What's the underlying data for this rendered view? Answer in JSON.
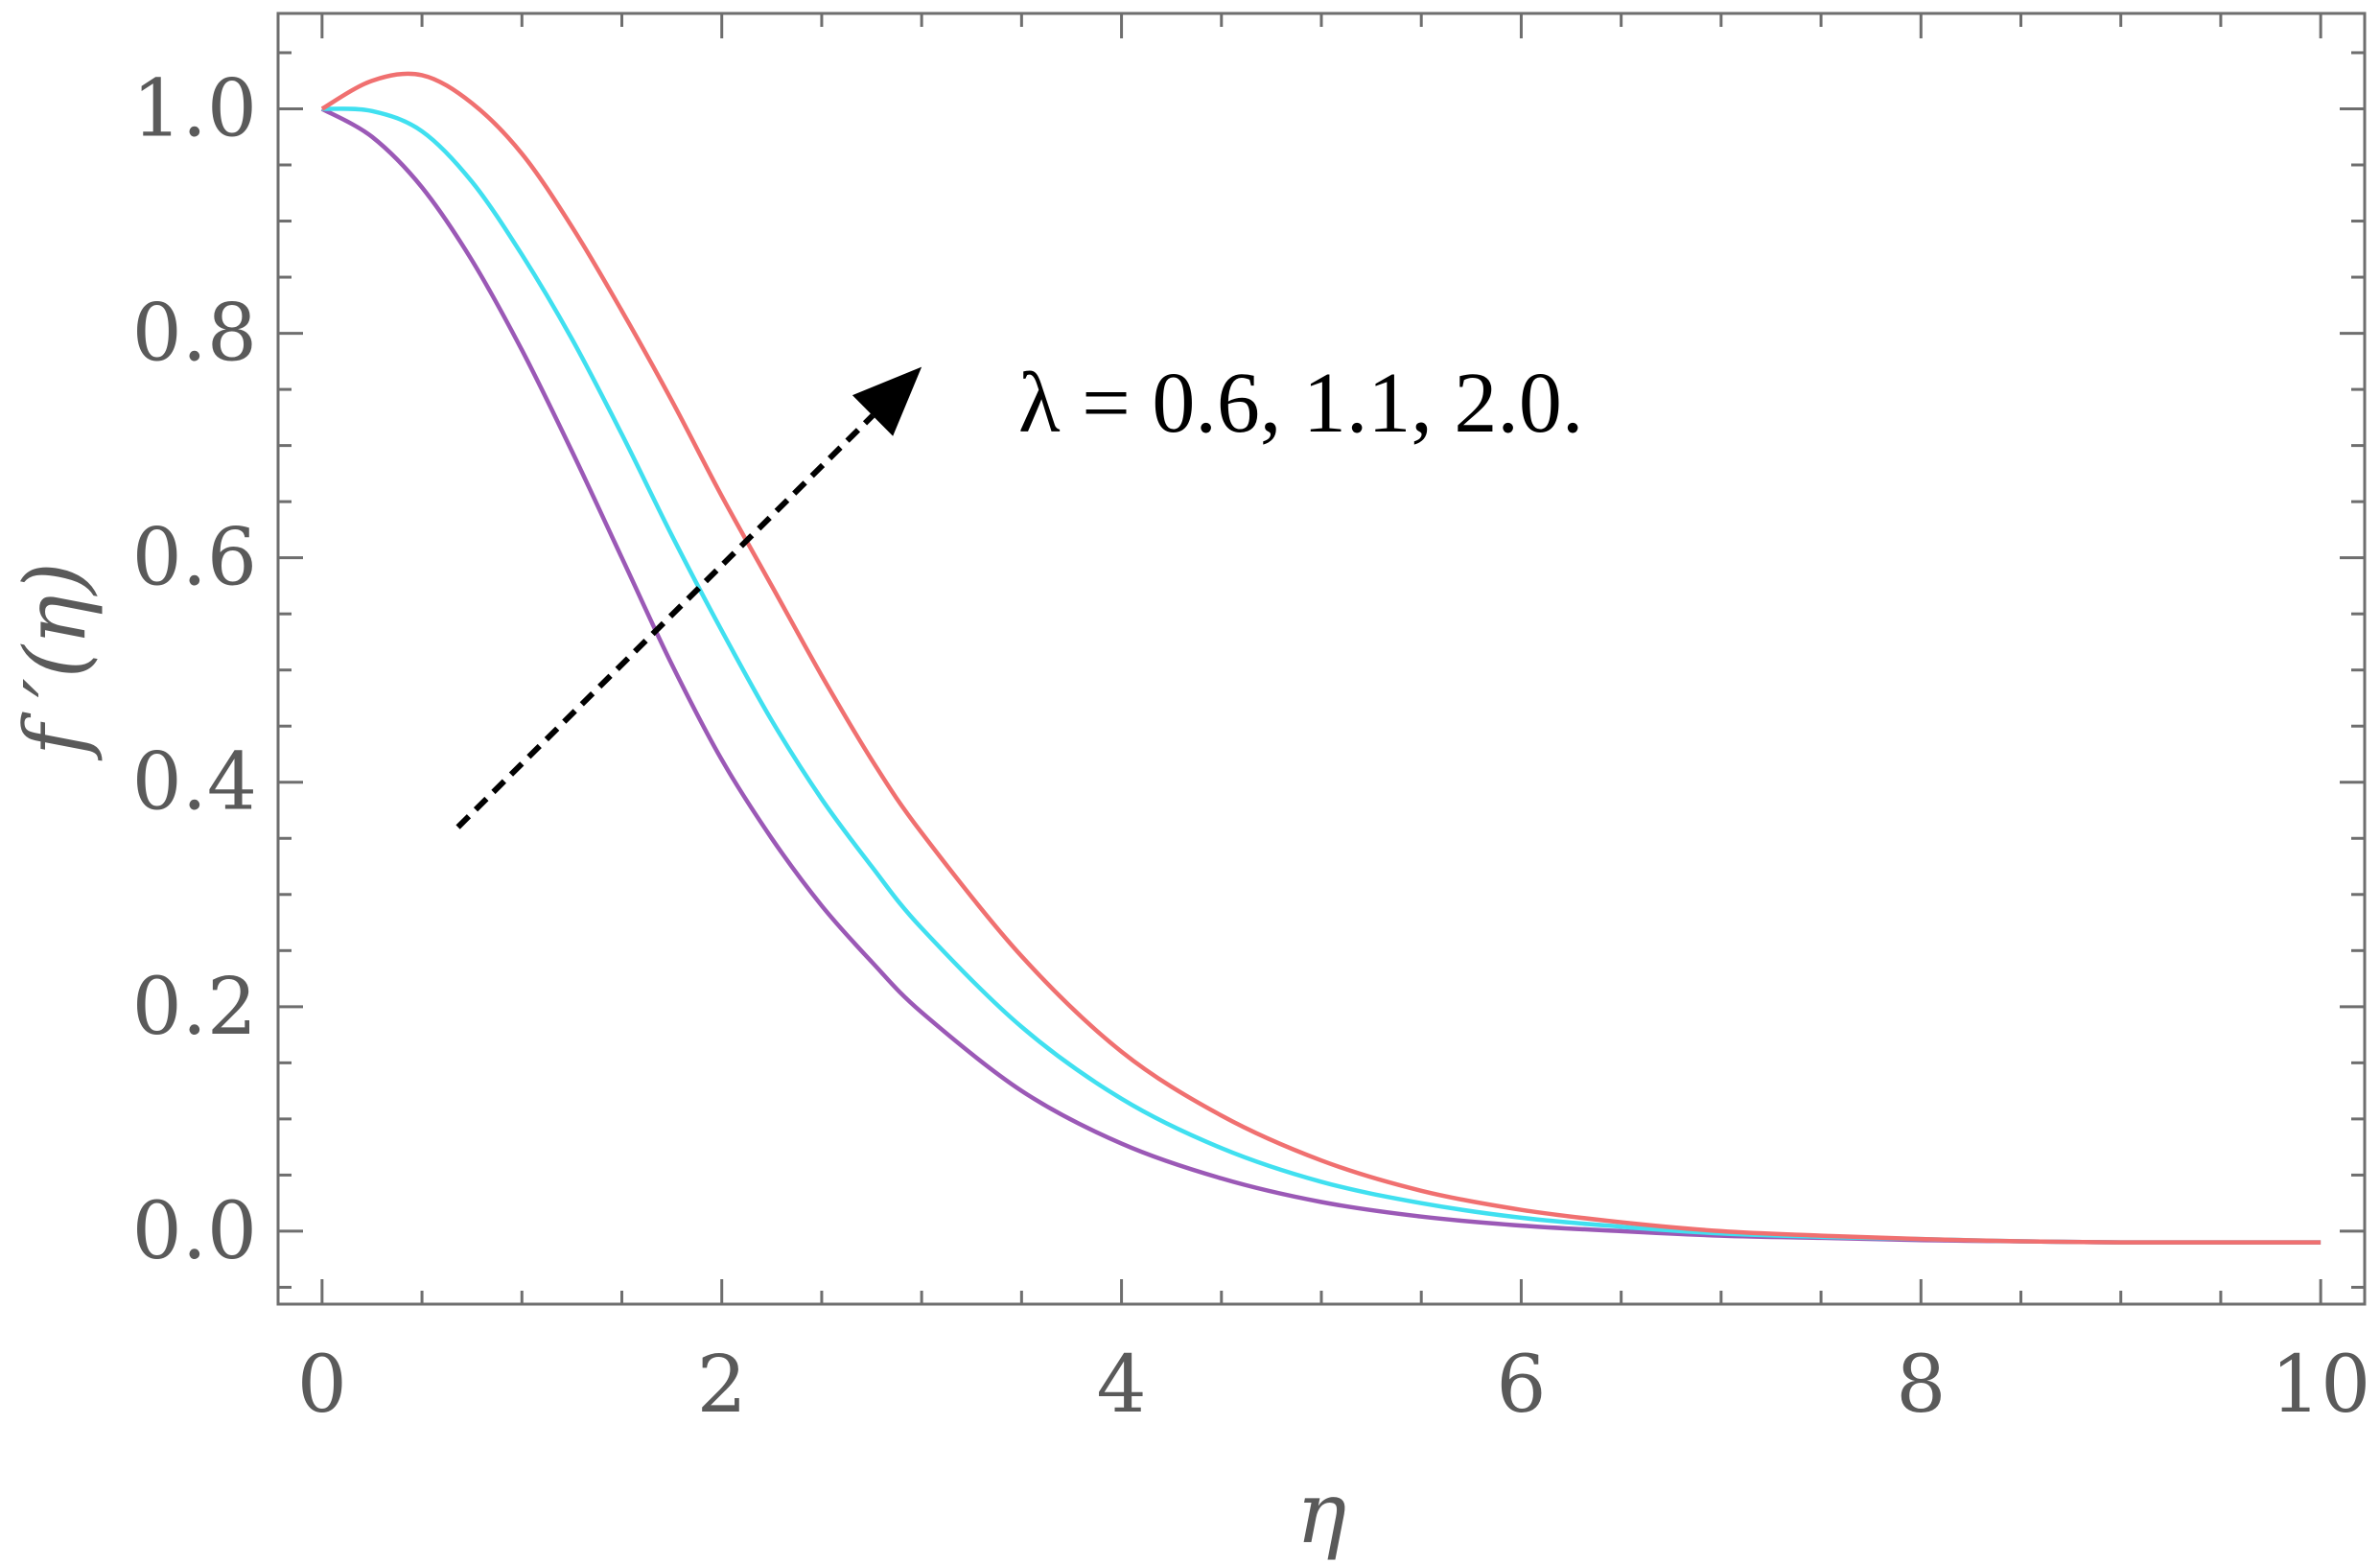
{
  "chart_data": {
    "type": "line",
    "xlabel": "η",
    "ylabel": "f ′(η)",
    "xlim": [
      -0.22,
      10.22
    ],
    "ylim": [
      -0.065,
      1.085
    ],
    "xticks": [
      0,
      2,
      4,
      6,
      8,
      10
    ],
    "yticks": [
      0.0,
      0.2,
      0.4,
      0.6,
      0.8,
      1.0
    ],
    "xtick_labels": [
      "0",
      "2",
      "4",
      "6",
      "8",
      "10"
    ],
    "ytick_labels": [
      "0.0",
      "0.2",
      "0.4",
      "0.6",
      "0.8",
      "1.0"
    ],
    "grid": false,
    "annotation": {
      "text": "λ = 0.6, 1.1, 2.0.",
      "arrow_from": [
        0.68,
        0.36
      ],
      "arrow_to": [
        3.0,
        0.77
      ]
    },
    "x": [
      0,
      0.25,
      0.5,
      0.75,
      1.0,
      1.25,
      1.5,
      1.75,
      2.0,
      2.25,
      2.5,
      2.75,
      3.0,
      3.5,
      4.0,
      4.5,
      5.0,
      5.5,
      6.0,
      6.5,
      7.0,
      7.5,
      8.0,
      8.5,
      9.0,
      9.5,
      10.0
    ],
    "series": [
      {
        "color": "#9b59b6",
        "values": [
          1.0,
          0.975,
          0.93,
          0.865,
          0.785,
          0.695,
          0.6,
          0.505,
          0.42,
          0.35,
          0.29,
          0.24,
          0.195,
          0.125,
          0.078,
          0.047,
          0.026,
          0.013,
          0.005,
          0.0,
          -0.004,
          -0.006,
          -0.008,
          -0.009,
          -0.01,
          -0.01,
          -0.01
        ]
      },
      {
        "color": "#40e0f0",
        "values": [
          1.0,
          0.998,
          0.98,
          0.935,
          0.87,
          0.795,
          0.71,
          0.62,
          0.535,
          0.455,
          0.385,
          0.325,
          0.27,
          0.182,
          0.118,
          0.074,
          0.044,
          0.025,
          0.012,
          0.004,
          -0.002,
          -0.005,
          -0.007,
          -0.009,
          -0.01,
          -0.01,
          -0.01
        ]
      },
      {
        "color": "#f07070",
        "values": [
          1.0,
          1.025,
          1.03,
          1.005,
          0.96,
          0.895,
          0.82,
          0.74,
          0.655,
          0.575,
          0.495,
          0.42,
          0.355,
          0.245,
          0.16,
          0.103,
          0.063,
          0.036,
          0.019,
          0.008,
          0.0,
          -0.004,
          -0.007,
          -0.009,
          -0.01,
          -0.01,
          -0.01
        ]
      }
    ]
  }
}
